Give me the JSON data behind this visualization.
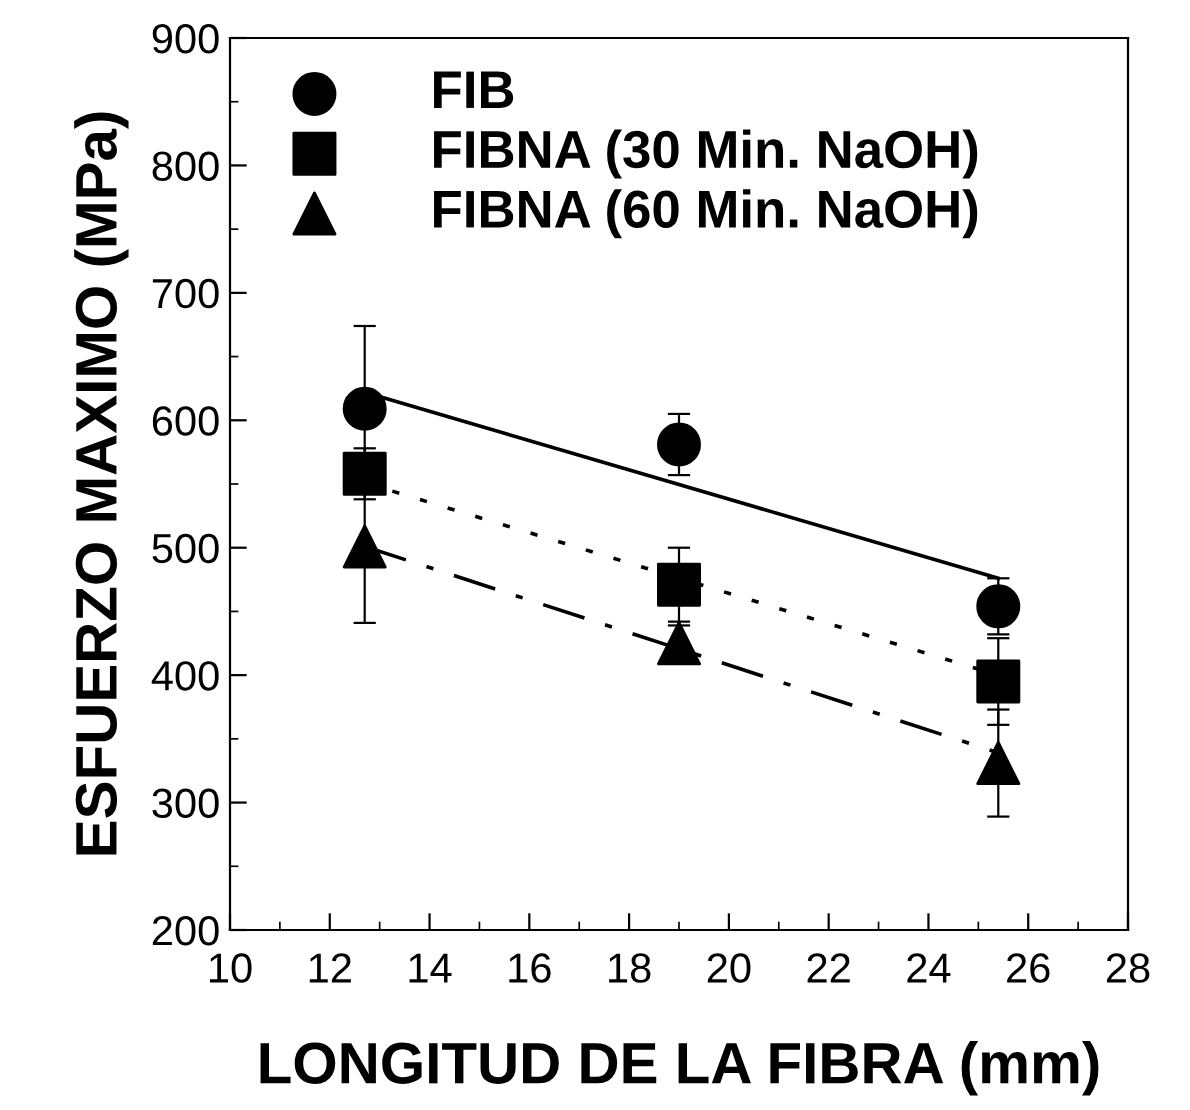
{
  "chart_data": {
    "type": "scatter",
    "xlabel": "LONGITUD DE LA FIBRA (mm)",
    "ylabel": "ESFUERZO MAXIMO (MPa)",
    "xlim": [
      10,
      28
    ],
    "xticks": [
      10,
      12,
      14,
      16,
      18,
      20,
      22,
      24,
      26,
      28
    ],
    "ylim": [
      200,
      900
    ],
    "yticks": [
      200,
      300,
      400,
      500,
      600,
      700,
      800,
      900
    ],
    "grid": false,
    "legend": "top left",
    "series": [
      {
        "name": "FIB",
        "marker": "circle",
        "color": "#000000",
        "x": [
          12.7,
          19.0,
          25.4
        ],
        "values": [
          609,
          581,
          454
        ],
        "errors": [
          65,
          24,
          22
        ]
      },
      {
        "name": "FIBNA (30 Min. NaOH)",
        "marker": "square",
        "color": "#000000",
        "x": [
          12.7,
          19.0,
          25.4
        ],
        "values": [
          558,
          471,
          395
        ],
        "errors": [
          20,
          29,
          34
        ]
      },
      {
        "name": "FIBNA (60 Min. NaOH)",
        "marker": "triangle",
        "color": "#000000",
        "x": [
          12.7,
          19.0,
          25.4
        ],
        "values": [
          501,
          425,
          331
        ],
        "errors": [
          60,
          14,
          42
        ]
      },
      {
        "type": "line",
        "line_style": "solid",
        "color": "#000000",
        "x": [
          12.7,
          25.4
        ],
        "values": [
          622,
          476
        ]
      },
      {
        "type": "line",
        "line_style": "dotted",
        "color": "#000000",
        "x": [
          12.7,
          25.4
        ],
        "values": [
          551,
          400
        ]
      },
      {
        "type": "line",
        "line_style": "dashdot",
        "color": "#000000",
        "x": [
          12.7,
          25.4
        ],
        "values": [
          501,
          339
        ]
      }
    ]
  }
}
